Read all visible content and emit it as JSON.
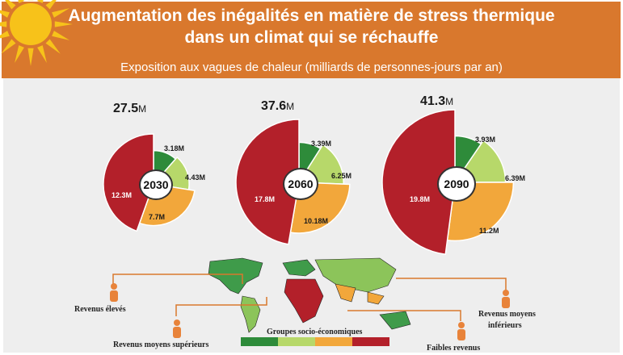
{
  "header": {
    "title_line1": "Augmentation des inégalités en matière de stress thermique",
    "title_line2": "dans un climat qui se réchauffe",
    "subtitle": "Exposition aux vagues de chaleur (milliards de personnes-jours par an)"
  },
  "colors": {
    "header_bg": "#d9782d",
    "high_income": "#2e8b3a",
    "upper_middle": "#b7d86a",
    "lower_middle": "#f2a73b",
    "low_income": "#b3202a",
    "sun": "#f7c21a"
  },
  "charts": [
    {
      "year": "2030",
      "total": "27.5",
      "unit": "M",
      "slices": [
        {
          "group": "high",
          "label": "3.18M",
          "value": 3.18
        },
        {
          "group": "upper",
          "label": "4.43M",
          "value": 4.43
        },
        {
          "group": "lower",
          "label": "7.7M",
          "value": 7.7
        },
        {
          "group": "low",
          "label": "12.3M",
          "value": 12.3
        }
      ]
    },
    {
      "year": "2060",
      "total": "37.6",
      "unit": "M",
      "slices": [
        {
          "group": "high",
          "label": "3.39M",
          "value": 3.39
        },
        {
          "group": "upper",
          "label": "6.25M",
          "value": 6.25
        },
        {
          "group": "lower",
          "label": "10.18M",
          "value": 10.18
        },
        {
          "group": "low",
          "label": "17.8M",
          "value": 17.8
        }
      ]
    },
    {
      "year": "2090",
      "total": "41.3",
      "unit": "M",
      "slices": [
        {
          "group": "high",
          "label": "3.93M",
          "value": 3.93
        },
        {
          "group": "upper",
          "label": "6.39M",
          "value": 6.39
        },
        {
          "group": "lower",
          "label": "11.2M",
          "value": 11.2
        },
        {
          "group": "low",
          "label": "19.8M",
          "value": 19.8
        }
      ]
    }
  ],
  "legend": {
    "high": "Revenus élevés",
    "upper": "Revenus moyens supérieurs",
    "lower_line1": "Revenus moyens",
    "lower_line2": "inférieurs",
    "low": "Faibles revenus",
    "groups_title": "Groupes socio-économiques"
  }
}
